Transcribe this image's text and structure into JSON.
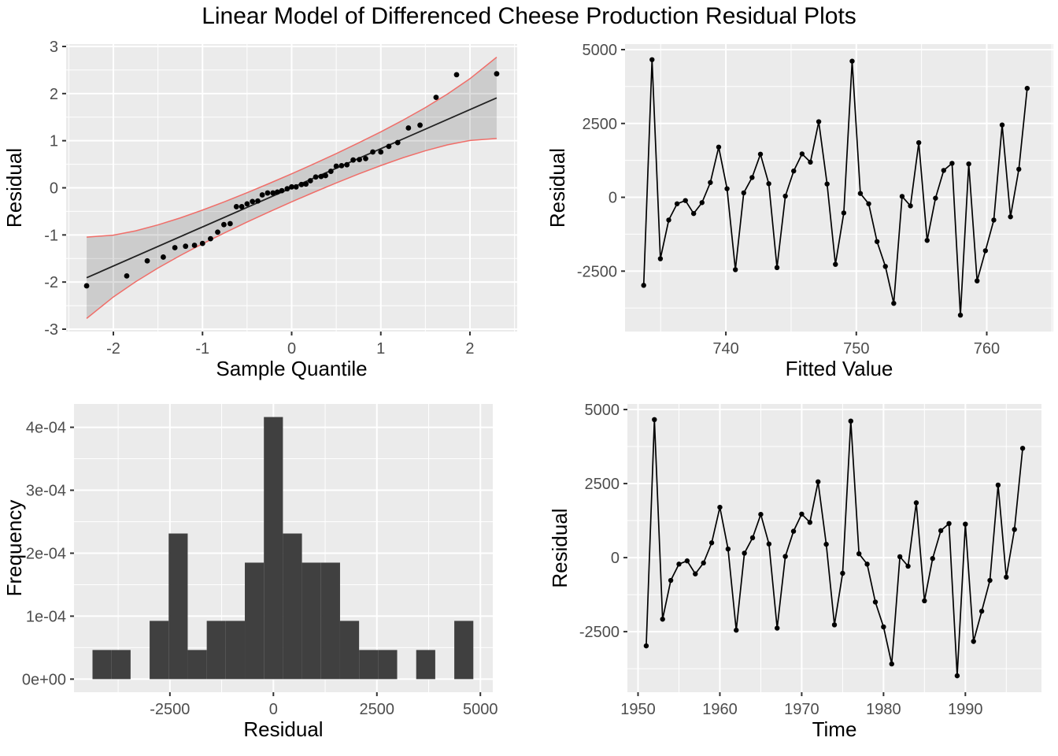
{
  "title": "Linear Model of Differenced Cheese Production Residual Plots",
  "colors": {
    "panel_bg": "#EBEBEB",
    "grid": "#FFFFFF",
    "point": "#000000",
    "line": "#000000",
    "qq_line": "#222222",
    "band_fill": "rgba(0,0,0,0.13)",
    "band_edge": "#F06E69",
    "bar_fill": "#404040",
    "tick_label": "#4D4D4D",
    "tick_mark": "#333333",
    "axis_title": "#000000"
  },
  "chart_data": [
    {
      "id": "qq",
      "type": "scatter",
      "xlabel": "Sample Quantile",
      "ylabel": "Residual",
      "xlim": [
        -2.53,
        2.53
      ],
      "ylim": [
        -3.05,
        3.05
      ],
      "xticks": [
        -2,
        -1,
        0,
        1,
        2
      ],
      "xtick_labels": [
        "-2",
        "-1",
        "0",
        "1",
        "2"
      ],
      "xminor": [
        -2.5,
        -1.5,
        -0.5,
        0.5,
        1.5,
        2.5
      ],
      "yticks": [
        -3,
        -2,
        -1,
        0,
        1,
        2,
        3
      ],
      "ytick_labels": [
        "-3",
        "-2",
        "-1",
        "0",
        "1",
        "2",
        "3"
      ],
      "yminor": [
        -2.5,
        -1.5,
        -0.5,
        0.5,
        1.5,
        2.5
      ],
      "points_x": [
        -2.3,
        -1.85,
        -1.62,
        -1.44,
        -1.31,
        -1.19,
        -1.09,
        -1.0,
        -0.91,
        -0.83,
        -0.76,
        -0.69,
        -0.62,
        -0.56,
        -0.5,
        -0.44,
        -0.38,
        -0.33,
        -0.27,
        -0.21,
        -0.16,
        -0.11,
        -0.05,
        0.0,
        0.05,
        0.11,
        0.16,
        0.21,
        0.27,
        0.33,
        0.38,
        0.44,
        0.5,
        0.56,
        0.62,
        0.69,
        0.76,
        0.83,
        0.91,
        1.0,
        1.09,
        1.19,
        1.31,
        1.44,
        1.62,
        1.85,
        2.3
      ],
      "points_y": [
        -2.08,
        -1.87,
        -1.55,
        -1.47,
        -1.27,
        -1.24,
        -1.22,
        -1.18,
        -1.08,
        -0.94,
        -0.78,
        -0.76,
        -0.4,
        -0.4,
        -0.34,
        -0.29,
        -0.28,
        -0.15,
        -0.11,
        -0.11,
        -0.09,
        -0.06,
        -0.02,
        0.02,
        0.02,
        0.07,
        0.08,
        0.15,
        0.23,
        0.24,
        0.26,
        0.35,
        0.46,
        0.47,
        0.49,
        0.59,
        0.6,
        0.62,
        0.76,
        0.76,
        0.88,
        0.96,
        1.27,
        1.33,
        1.92,
        2.4,
        2.42
      ],
      "line": {
        "x": [
          -2.3,
          2.3
        ],
        "y": [
          -1.909,
          1.909
        ]
      },
      "band": {
        "x": [
          -2.3,
          -2.0,
          -1.75,
          -1.5,
          -1.25,
          -1.0,
          -0.75,
          -0.5,
          -0.25,
          0.0,
          0.25,
          0.5,
          0.75,
          1.0,
          1.25,
          1.5,
          1.75,
          2.0,
          2.3
        ],
        "upper": [
          -1.046,
          -1.004,
          -0.913,
          -0.787,
          -0.639,
          -0.472,
          -0.293,
          -0.104,
          0.094,
          0.297,
          0.509,
          0.726,
          0.953,
          1.188,
          1.437,
          1.703,
          1.993,
          2.316,
          2.772
        ],
        "lower": [
          -2.772,
          -2.316,
          -1.993,
          -1.703,
          -1.437,
          -1.188,
          -0.953,
          -0.726,
          -0.509,
          -0.297,
          -0.094,
          0.104,
          0.293,
          0.472,
          0.639,
          0.787,
          0.913,
          1.004,
          1.046
        ]
      }
    },
    {
      "id": "fitted",
      "type": "line",
      "xlabel": "Fitted Value",
      "ylabel": "Residual",
      "xlim": [
        732.27,
        765.1
      ],
      "ylim": [
        -4545,
        5187
      ],
      "xticks": [
        740,
        750,
        760
      ],
      "xtick_labels": [
        "740",
        "750",
        "760"
      ],
      "xminor": [
        735,
        745,
        755,
        765
      ],
      "yticks": [
        -2500,
        0,
        2500,
        5000
      ],
      "ytick_labels": [
        "-2500",
        "0",
        "2500",
        "5000"
      ],
      "yminor": [
        -3750,
        -1250,
        1250,
        3750
      ],
      "x": [
        733.7,
        734.34,
        734.98,
        735.62,
        736.26,
        736.9,
        737.53,
        738.17,
        738.81,
        739.45,
        740.09,
        740.73,
        741.37,
        742.01,
        742.65,
        743.29,
        743.92,
        744.56,
        745.2,
        745.84,
        746.48,
        747.12,
        747.76,
        748.4,
        749.04,
        749.68,
        750.31,
        750.95,
        751.59,
        752.23,
        752.87,
        753.51,
        754.15,
        754.79,
        755.43,
        756.07,
        756.7,
        757.34,
        757.98,
        758.62,
        759.26,
        759.9,
        760.54,
        761.18,
        761.82,
        762.46,
        763.1
      ],
      "y": [
        -2980,
        4660,
        -2080,
        -770,
        -220,
        -110,
        -550,
        -180,
        500,
        1700,
        290,
        -2450,
        150,
        670,
        1460,
        460,
        -2380,
        40,
        890,
        1470,
        1190,
        2560,
        450,
        -2270,
        -530,
        4610,
        130,
        -220,
        -1500,
        -2340,
        -3590,
        30,
        -290,
        1850,
        -1460,
        -30,
        910,
        1150,
        -3990,
        1130,
        -2830,
        -1810,
        -770,
        2450,
        -660,
        950,
        3690
      ]
    },
    {
      "id": "hist",
      "type": "bar",
      "xlabel": "Residual",
      "ylabel": "Frequency",
      "xlim": [
        -4817,
        5300
      ],
      "ylim": [
        -2.08e-05,
        0.000437
      ],
      "xticks": [
        -2500,
        0,
        2500,
        5000
      ],
      "xtick_labels": [
        "-2500",
        "0",
        "2500",
        "5000"
      ],
      "xminor": [
        -3750,
        -1250,
        1250,
        3750
      ],
      "yticks": [
        0,
        0.0001,
        0.0002,
        0.0003,
        0.0004
      ],
      "ytick_labels": [
        "0e+00",
        "1e-04",
        "2e-04",
        "3e-04",
        "4e-04"
      ],
      "yminor": [
        5e-05,
        0.00015,
        0.00025,
        0.00035
      ],
      "bin_start": -4370,
      "bin_width": 460,
      "counts": [
        1,
        1,
        0,
        2,
        5,
        1,
        2,
        2,
        4,
        9,
        5,
        4,
        4,
        2,
        1,
        1,
        0,
        1,
        0,
        2
      ],
      "n": 47
    },
    {
      "id": "time",
      "type": "line",
      "xlabel": "Time",
      "ylabel": "Residual",
      "xlim": [
        1948.7,
        1999.3
      ],
      "ylim": [
        -4545,
        5187
      ],
      "xticks": [
        1950,
        1960,
        1970,
        1980,
        1990
      ],
      "xtick_labels": [
        "1950",
        "1960",
        "1970",
        "1980",
        "1990"
      ],
      "xminor": [
        1955,
        1965,
        1975,
        1985,
        1995
      ],
      "yticks": [
        -2500,
        0,
        2500,
        5000
      ],
      "ytick_labels": [
        "-2500",
        "0",
        "2500",
        "5000"
      ],
      "yminor": [
        -3750,
        -1250,
        1250,
        3750
      ],
      "x": [
        1951,
        1952,
        1953,
        1954,
        1955,
        1956,
        1957,
        1958,
        1959,
        1960,
        1961,
        1962,
        1963,
        1964,
        1965,
        1966,
        1967,
        1968,
        1969,
        1970,
        1971,
        1972,
        1973,
        1974,
        1975,
        1976,
        1977,
        1978,
        1979,
        1980,
        1981,
        1982,
        1983,
        1984,
        1985,
        1986,
        1987,
        1988,
        1989,
        1990,
        1991,
        1992,
        1993,
        1994,
        1995,
        1996,
        1997
      ],
      "y": [
        -2980,
        4660,
        -2080,
        -770,
        -220,
        -110,
        -550,
        -180,
        500,
        1700,
        290,
        -2450,
        150,
        670,
        1460,
        460,
        -2380,
        40,
        890,
        1470,
        1190,
        2560,
        450,
        -2270,
        -530,
        4610,
        130,
        -220,
        -1500,
        -2340,
        -3590,
        30,
        -290,
        1850,
        -1460,
        -30,
        910,
        1150,
        -3990,
        1130,
        -2830,
        -1810,
        -770,
        2450,
        -660,
        950,
        3690
      ]
    }
  ]
}
